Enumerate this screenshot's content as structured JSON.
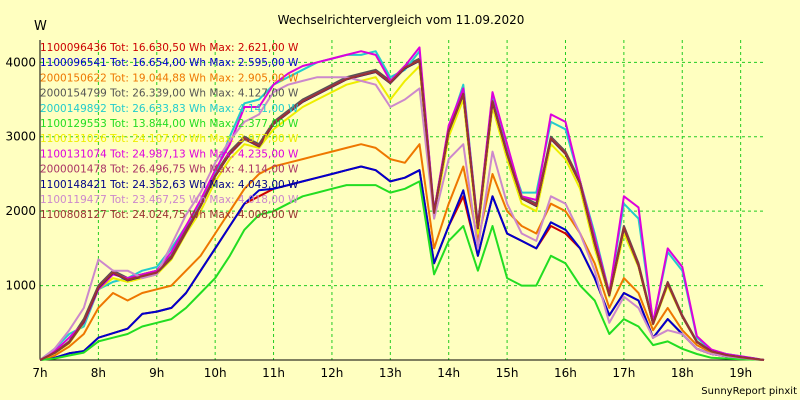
{
  "chart_data": {
    "type": "line",
    "title": "Wechselrichtervergleich vom 11.09.2020",
    "ylabel": "W",
    "footer": "SunnyReport pinxit",
    "ylim": [
      0,
      4300
    ],
    "yticks": [
      1000,
      2000,
      3000,
      4000
    ],
    "yticklabels": [
      "1000",
      "2000",
      "3000",
      "4000"
    ],
    "xlim": [
      7,
      19.4
    ],
    "xticks": [
      7,
      8,
      9,
      10,
      11,
      12,
      13,
      14,
      15,
      16,
      17,
      18,
      19
    ],
    "xticklabels": [
      "7h",
      "8h",
      "9h",
      "10h",
      "11h",
      "12h",
      "13h",
      "14h",
      "15h",
      "16h",
      "17h",
      "18h",
      "19h"
    ],
    "grid": true,
    "legend_position": "top-left",
    "x": [
      7.0,
      7.25,
      7.5,
      7.75,
      8.0,
      8.25,
      8.5,
      8.75,
      9.0,
      9.25,
      9.5,
      9.75,
      10.0,
      10.25,
      10.5,
      10.75,
      11.0,
      11.25,
      11.5,
      11.75,
      12.0,
      12.25,
      12.5,
      12.75,
      13.0,
      13.25,
      13.5,
      13.75,
      14.0,
      14.25,
      14.5,
      14.75,
      15.0,
      15.25,
      15.5,
      15.75,
      16.0,
      16.25,
      16.5,
      16.75,
      17.0,
      17.25,
      17.5,
      17.75,
      18.0,
      18.25,
      18.5,
      18.75,
      19.0,
      19.25,
      19.4
    ],
    "series": [
      {
        "name": "1100096436 Tot: 16.630,50 Wh Max: 2.621,00 W",
        "color": "#CC0000",
        "values": [
          0,
          30,
          90,
          120,
          300,
          360,
          420,
          620,
          650,
          700,
          900,
          1200,
          1500,
          1800,
          2100,
          2200,
          2300,
          2350,
          2400,
          2450,
          2500,
          2550,
          2600,
          2550,
          2400,
          2450,
          2550,
          1300,
          1800,
          2200,
          1400,
          2200,
          1700,
          1600,
          1500,
          1800,
          1700,
          1500,
          1100,
          600,
          900,
          800,
          300,
          550,
          350,
          150,
          80,
          50,
          30,
          10,
          0
        ]
      },
      {
        "name": "1100096541 Tot: 16.654,00 Wh Max: 2.595,00 W",
        "color": "#0000CC",
        "values": [
          0,
          30,
          90,
          120,
          300,
          360,
          420,
          620,
          650,
          700,
          900,
          1200,
          1500,
          1800,
          2100,
          2280,
          2300,
          2350,
          2400,
          2450,
          2500,
          2550,
          2600,
          2550,
          2400,
          2450,
          2550,
          1300,
          1800,
          2280,
          1400,
          2200,
          1700,
          1600,
          1500,
          1850,
          1750,
          1500,
          1100,
          600,
          900,
          800,
          300,
          550,
          350,
          150,
          80,
          50,
          30,
          10,
          0
        ]
      },
      {
        "name": "2000150622 Tot: 19.044,88 Wh Max: 2.905,00 W",
        "color": "#EE7700",
        "values": [
          0,
          60,
          180,
          350,
          700,
          900,
          800,
          900,
          950,
          1000,
          1200,
          1400,
          1700,
          2000,
          2300,
          2500,
          2600,
          2650,
          2700,
          2750,
          2800,
          2850,
          2900,
          2850,
          2700,
          2650,
          2900,
          1500,
          2100,
          2600,
          1600,
          2500,
          2000,
          1800,
          1700,
          2100,
          2000,
          1700,
          1300,
          700,
          1100,
          900,
          400,
          700,
          400,
          200,
          100,
          60,
          30,
          10,
          0
        ]
      },
      {
        "name": "2000154799 Tot: 26.339,00 Wh Max: 4.127,00 W",
        "color": "#555555",
        "values": [
          0,
          100,
          250,
          550,
          1000,
          1200,
          1100,
          1150,
          1200,
          1400,
          1750,
          2100,
          2500,
          2800,
          3000,
          2900,
          3200,
          3350,
          3500,
          3600,
          3700,
          3800,
          3850,
          3900,
          3750,
          3950,
          4050,
          2000,
          3100,
          3600,
          1800,
          3500,
          2800,
          2200,
          2100,
          3000,
          2800,
          2400,
          1600,
          900,
          1800,
          1300,
          500,
          1050,
          600,
          250,
          120,
          70,
          40,
          15,
          0
        ]
      },
      {
        "name": "2000149892 Tot: 26.633,83 Wh Max: 4.141,00 W",
        "color": "#22CCCC",
        "values": [
          0,
          150,
          350,
          450,
          950,
          1050,
          1100,
          1200,
          1250,
          1500,
          1800,
          2100,
          2500,
          3000,
          3450,
          3500,
          3700,
          3800,
          3900,
          4000,
          4050,
          4100,
          4100,
          4150,
          3800,
          3900,
          4150,
          2000,
          3100,
          3700,
          1800,
          3550,
          2800,
          2250,
          2250,
          3200,
          3100,
          2400,
          1700,
          900,
          2100,
          1900,
          500,
          1450,
          1200,
          300,
          130,
          80,
          50,
          20,
          0
        ]
      },
      {
        "name": "1100129553 Tot: 13.844,00 Wh Max: 2.377,00 W",
        "color": "#22DD22",
        "values": [
          0,
          20,
          60,
          100,
          250,
          300,
          350,
          450,
          500,
          550,
          700,
          900,
          1100,
          1400,
          1750,
          1950,
          2000,
          2100,
          2200,
          2250,
          2300,
          2350,
          2350,
          2350,
          2250,
          2300,
          2400,
          1150,
          1600,
          1800,
          1200,
          1800,
          1100,
          1000,
          1000,
          1400,
          1300,
          1000,
          800,
          350,
          550,
          450,
          200,
          250,
          150,
          80,
          30,
          20,
          10,
          5,
          0
        ]
      },
      {
        "name": "1100131026 Tot: 24.107,00 Wh Max: 3.977,00 W",
        "color": "#EEEE00",
        "values": [
          0,
          90,
          220,
          500,
          950,
          1100,
          1050,
          1100,
          1150,
          1350,
          1700,
          2000,
          2400,
          2700,
          2900,
          2850,
          3100,
          3250,
          3400,
          3500,
          3600,
          3700,
          3750,
          3800,
          3500,
          3750,
          3950,
          1900,
          3000,
          3500,
          1700,
          3400,
          2700,
          2100,
          2000,
          2900,
          2700,
          2300,
          1500,
          850,
          1700,
          1250,
          480,
          1000,
          580,
          240,
          110,
          65,
          35,
          12,
          0
        ]
      },
      {
        "name": "1100131074 Tot: 24.987,13 Wh Max: 4.235,00 W",
        "color": "#DD00DD",
        "values": [
          0,
          120,
          300,
          500,
          950,
          1150,
          1100,
          1150,
          1200,
          1450,
          1800,
          2150,
          2550,
          2900,
          3400,
          3400,
          3700,
          3850,
          3950,
          4000,
          4050,
          4100,
          4150,
          4100,
          3750,
          3950,
          4200,
          2000,
          3150,
          3650,
          1800,
          3600,
          2900,
          2200,
          2150,
          3300,
          3200,
          2400,
          1650,
          900,
          2200,
          2050,
          500,
          1500,
          1250,
          320,
          140,
          80,
          50,
          20,
          0
        ]
      },
      {
        "name": "2000001478 Tot: 26.496,75 Wh Max: 4.114,00 W",
        "color": "#AA3366",
        "values": [
          0,
          100,
          240,
          520,
          980,
          1180,
          1080,
          1130,
          1180,
          1380,
          1730,
          2080,
          2480,
          2780,
          2980,
          2880,
          3180,
          3330,
          3480,
          3580,
          3680,
          3780,
          3830,
          3880,
          3730,
          3930,
          4030,
          1980,
          3080,
          3580,
          1780,
          3480,
          2780,
          2180,
          2080,
          2980,
          2780,
          2380,
          1580,
          880,
          1780,
          1280,
          490,
          1040,
          590,
          245,
          118,
          68,
          38,
          14,
          0
        ]
      },
      {
        "name": "1100148421 Tot: 24.352,63 Wh Max: 4.043,00 W",
        "color": "#000088",
        "values": [
          0,
          95,
          235,
          510,
          970,
          1170,
          1070,
          1120,
          1170,
          1370,
          1720,
          2070,
          2470,
          2770,
          2970,
          2870,
          3170,
          3320,
          3470,
          3570,
          3670,
          3770,
          3820,
          3870,
          3720,
          3920,
          4020,
          1970,
          3070,
          3570,
          1770,
          3470,
          2770,
          2170,
          2070,
          2970,
          2770,
          2370,
          1570,
          870,
          1770,
          1270,
          485,
          1030,
          585,
          240,
          115,
          66,
          36,
          13,
          0
        ]
      },
      {
        "name": "1100119477 Tot: 23.467,25 Wh Max: 4.018,00 W",
        "color": "#CC88CC",
        "values": [
          0,
          150,
          400,
          700,
          1350,
          1200,
          1200,
          1100,
          1150,
          1550,
          1950,
          2250,
          2650,
          2950,
          3200,
          3300,
          3600,
          3700,
          3750,
          3800,
          3800,
          3800,
          3750,
          3700,
          3400,
          3500,
          3650,
          1900,
          2700,
          2900,
          1500,
          2800,
          2100,
          1700,
          1600,
          2200,
          2100,
          1700,
          1200,
          500,
          850,
          700,
          300,
          400,
          350,
          150,
          80,
          50,
          30,
          10,
          0
        ]
      },
      {
        "name": "1100808127 Tot: 24.024,75 Wh Max: 4.008,00 W",
        "color": "#993333",
        "values": [
          0,
          98,
          238,
          515,
          975,
          1175,
          1075,
          1125,
          1175,
          1375,
          1725,
          2075,
          2475,
          2775,
          2975,
          2875,
          3175,
          3325,
          3475,
          3575,
          3675,
          3775,
          3825,
          3875,
          3725,
          3925,
          4025,
          1975,
          3075,
          3575,
          1775,
          3475,
          2775,
          2175,
          2075,
          2975,
          2775,
          2375,
          1575,
          875,
          1775,
          1275,
          487,
          1035,
          587,
          242,
          116,
          67,
          37,
          13,
          0
        ]
      }
    ]
  }
}
